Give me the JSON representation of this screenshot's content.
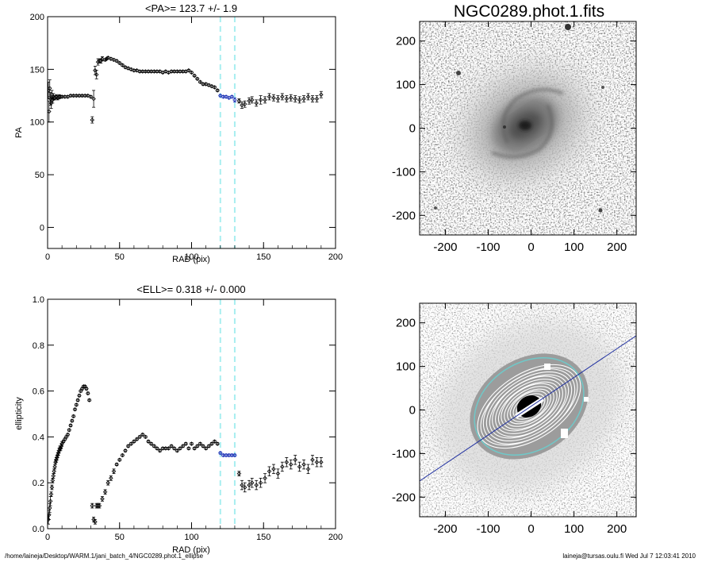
{
  "figure": {
    "image_title": "NGC0289.phot.1.fits",
    "footer_left": "/home/laineja/Desktop/WARM.1/jani_batch_4/NGC0289.phot.1_ellipse",
    "footer_right": "laineja@tursas.oulu.fi  Wed Jul  7 12:03:41 2010"
  },
  "chart_data": [
    {
      "type": "scatter",
      "title": "<PA>= 123.7 +/-   1.9",
      "xlabel": "RAD (pix)",
      "ylabel": "PA",
      "xlim": [
        0,
        200
      ],
      "ylim": [
        -20,
        200
      ],
      "xticks": [
        0,
        50,
        100,
        150,
        200
      ],
      "yticks": [
        0,
        50,
        100,
        150,
        200
      ],
      "vlines": [
        120,
        130
      ],
      "highlight_range": [
        120,
        130
      ],
      "series": [
        {
          "x": [
            0.5,
            1,
            1.5,
            2,
            2.5,
            3,
            3.5,
            4,
            5,
            6,
            7,
            8,
            9,
            10,
            12,
            14,
            16,
            18,
            20,
            22,
            24,
            26,
            28,
            30,
            31,
            32,
            33,
            34,
            35,
            36,
            37,
            38,
            40,
            41,
            42,
            44,
            46,
            48,
            50,
            52,
            54,
            56,
            58,
            60,
            62,
            64,
            66,
            68,
            70,
            72,
            74,
            76,
            78,
            80,
            82,
            84,
            86,
            88,
            90,
            92,
            94,
            96,
            98,
            100,
            102,
            104,
            106,
            108,
            110,
            112,
            114,
            116,
            118,
            120,
            122,
            124,
            126,
            128,
            130,
            133,
            135,
            137,
            140,
            142,
            145,
            148,
            151,
            154,
            157,
            160,
            163,
            166,
            169,
            172,
            175,
            178,
            181,
            184,
            187,
            190
          ],
          "y": [
            130,
            110,
            132,
            122,
            118,
            126,
            121,
            124,
            123,
            124,
            123,
            124,
            124,
            124,
            124,
            124,
            125,
            125,
            125,
            125,
            125,
            125,
            125,
            124,
            102,
            122,
            149,
            145,
            157,
            158,
            158,
            160,
            159,
            160,
            161,
            160,
            159,
            158,
            156,
            154,
            152,
            151,
            150,
            149,
            149,
            148,
            148,
            148,
            148,
            148,
            148,
            148,
            148,
            147,
            148,
            147,
            148,
            148,
            148,
            148,
            148,
            148,
            149,
            147,
            144,
            141,
            138,
            136,
            136,
            135,
            134,
            133,
            130,
            125,
            124,
            124,
            123,
            124,
            121,
            120,
            116,
            117,
            120,
            121,
            118,
            121,
            121,
            124,
            123,
            122,
            124,
            122,
            123,
            122,
            121,
            122,
            124,
            122,
            122,
            126
          ],
          "err": [
            8,
            10,
            8,
            6,
            5,
            4,
            3,
            3,
            2,
            2,
            2,
            2,
            1,
            1,
            1,
            1,
            1,
            1,
            1,
            1,
            1,
            1,
            1,
            1,
            3,
            8,
            4,
            4,
            3,
            2,
            2,
            2,
            1,
            1,
            1,
            1,
            1,
            1,
            1,
            1,
            1,
            1,
            1,
            1,
            1,
            1,
            1,
            1,
            1,
            1,
            1,
            1,
            1,
            1,
            1,
            1,
            1,
            1,
            1,
            1,
            1,
            1,
            1,
            1,
            1,
            1,
            1,
            1,
            1,
            1,
            1,
            1,
            1,
            1,
            1,
            1,
            1,
            1,
            2,
            2,
            3,
            3,
            3,
            3,
            3,
            4,
            3,
            3,
            3,
            3,
            3,
            3,
            3,
            3,
            3,
            3,
            3,
            3,
            3,
            3
          ]
        }
      ]
    },
    {
      "type": "scatter",
      "title": "<ELL>= 0.318 +/-  0.000",
      "xlabel": "RAD (pix)",
      "ylabel": "ellipticity",
      "xlim": [
        0,
        200
      ],
      "ylim": [
        0,
        1
      ],
      "xticks": [
        0,
        50,
        100,
        150,
        200
      ],
      "yticks": [
        0.0,
        0.2,
        0.4,
        0.6,
        0.8,
        1.0
      ],
      "ytick_labels": [
        "0.0",
        "0.2",
        "0.4",
        "0.6",
        "0.8",
        "1.0"
      ],
      "vlines": [
        120,
        130
      ],
      "highlight_range": [
        120,
        130
      ],
      "series": [
        {
          "x": [
            0.5,
            1,
            1.5,
            2,
            2.5,
            3,
            3.5,
            4,
            4.5,
            5,
            5.5,
            6,
            6.5,
            7,
            7.5,
            8,
            8.5,
            9,
            9.5,
            10,
            11,
            12,
            13,
            14,
            15,
            16,
            17,
            18,
            19,
            20,
            21,
            22,
            23,
            24,
            25,
            26,
            27,
            28,
            29,
            31,
            32,
            33,
            34,
            35,
            36,
            38,
            40,
            42,
            44,
            46,
            48,
            50,
            52,
            54,
            56,
            58,
            60,
            62,
            64,
            66,
            68,
            70,
            72,
            74,
            76,
            78,
            80,
            82,
            84,
            86,
            88,
            90,
            92,
            94,
            96,
            98,
            100,
            102,
            104,
            106,
            108,
            110,
            112,
            114,
            116,
            118,
            120,
            122,
            124,
            126,
            128,
            130,
            133,
            135,
            137,
            140,
            142,
            145,
            148,
            151,
            154,
            157,
            160,
            163,
            166,
            169,
            172,
            175,
            178,
            181,
            184,
            187,
            190
          ],
          "y": [
            0.04,
            0.06,
            0.09,
            0.12,
            0.15,
            0.18,
            0.21,
            0.23,
            0.25,
            0.27,
            0.29,
            0.3,
            0.31,
            0.32,
            0.33,
            0.34,
            0.35,
            0.35,
            0.36,
            0.37,
            0.38,
            0.39,
            0.4,
            0.41,
            0.43,
            0.45,
            0.47,
            0.49,
            0.52,
            0.54,
            0.56,
            0.58,
            0.6,
            0.61,
            0.62,
            0.62,
            0.61,
            0.59,
            0.56,
            0.1,
            0.04,
            0.03,
            0.1,
            0.1,
            0.1,
            0.13,
            0.16,
            0.2,
            0.22,
            0.25,
            0.28,
            0.3,
            0.32,
            0.34,
            0.36,
            0.37,
            0.38,
            0.39,
            0.4,
            0.41,
            0.4,
            0.38,
            0.37,
            0.36,
            0.35,
            0.34,
            0.35,
            0.35,
            0.35,
            0.36,
            0.35,
            0.34,
            0.35,
            0.36,
            0.37,
            0.35,
            0.37,
            0.35,
            0.36,
            0.37,
            0.36,
            0.35,
            0.36,
            0.37,
            0.38,
            0.37,
            0.33,
            0.32,
            0.32,
            0.32,
            0.32,
            0.32,
            0.24,
            0.19,
            0.18,
            0.19,
            0.2,
            0.19,
            0.2,
            0.22,
            0.25,
            0.26,
            0.24,
            0.27,
            0.29,
            0.28,
            0.3,
            0.27,
            0.28,
            0.26,
            0.3,
            0.29,
            0.29
          ],
          "err": [
            0.02,
            0.02,
            0.02,
            0.02,
            0.01,
            0.01,
            0.01,
            0.01,
            0.01,
            0.01,
            0.01,
            0.01,
            0.01,
            0.01,
            0.01,
            0.01,
            0.01,
            0.01,
            0.01,
            0.01,
            0.005,
            0.005,
            0.005,
            0.005,
            0.005,
            0.005,
            0.005,
            0.005,
            0.005,
            0.005,
            0.005,
            0.005,
            0.005,
            0.005,
            0.005,
            0.005,
            0.005,
            0.005,
            0.005,
            0.01,
            0.01,
            0.01,
            0.01,
            0.01,
            0.01,
            0.01,
            0.01,
            0.01,
            0.01,
            0.01,
            0.005,
            0.005,
            0.005,
            0.005,
            0.005,
            0.005,
            0.005,
            0.005,
            0.005,
            0.005,
            0.005,
            0.005,
            0.005,
            0.005,
            0.005,
            0.005,
            0.005,
            0.005,
            0.005,
            0.005,
            0.005,
            0.005,
            0.005,
            0.005,
            0.005,
            0.005,
            0.005,
            0.005,
            0.005,
            0.005,
            0.005,
            0.005,
            0.005,
            0.005,
            0.005,
            0.005,
            0.005,
            0.005,
            0.005,
            0.005,
            0.005,
            0.005,
            0.01,
            0.02,
            0.02,
            0.02,
            0.02,
            0.02,
            0.02,
            0.02,
            0.02,
            0.02,
            0.02,
            0.02,
            0.02,
            0.02,
            0.02,
            0.02,
            0.02,
            0.02,
            0.02,
            0.02,
            0.02
          ]
        }
      ]
    },
    {
      "type": "heatmap",
      "title": "NGC0289.phot.1.fits",
      "xlim": [
        -260,
        245
      ],
      "ylim": [
        -245,
        245
      ],
      "xticks": [
        -200,
        -100,
        0,
        100,
        200
      ],
      "yticks": [
        -200,
        -100,
        0,
        100,
        200
      ],
      "colormap": "grayscale inverted"
    },
    {
      "type": "heatmap",
      "title": "",
      "xlim": [
        -260,
        245
      ],
      "ylim": [
        -245,
        245
      ],
      "xticks": [
        -200,
        -100,
        0,
        100,
        200
      ],
      "yticks": [
        -200,
        -100,
        0,
        100,
        200
      ],
      "colormap": "grayscale inverted",
      "overlay": "ellipse isophotes with major-axis line"
    }
  ],
  "colors": {
    "points": "#000000",
    "highlight_points": "#1a2fb5",
    "vline": "#a8eef0",
    "pa_line": "#2030a0",
    "contours": "#ffffff",
    "outer_contour": "#70c8c8"
  }
}
